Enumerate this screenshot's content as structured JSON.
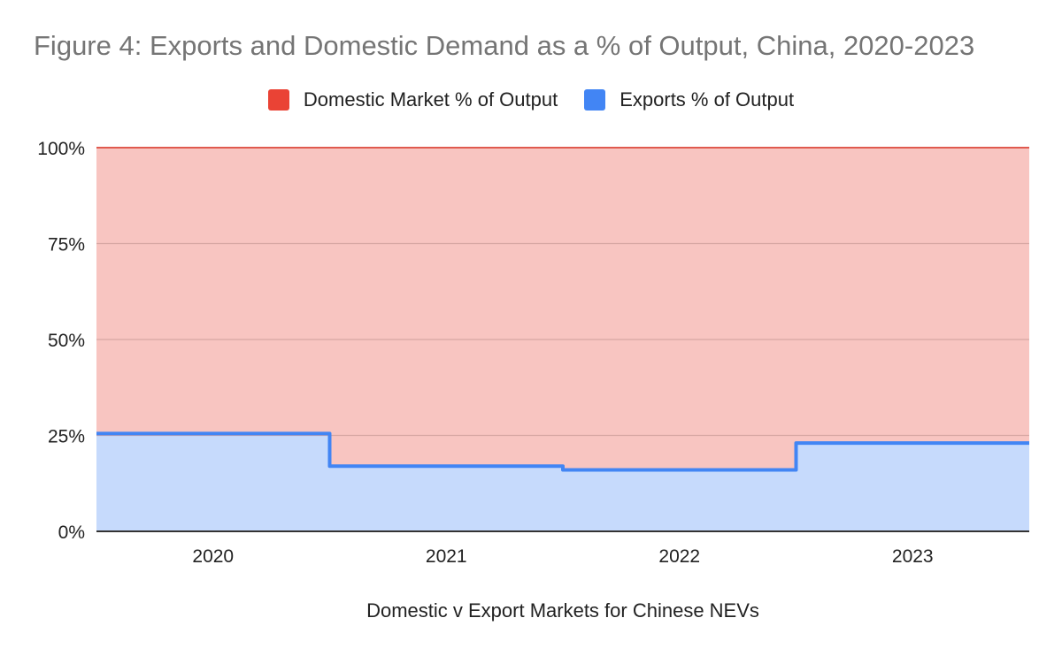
{
  "chart_data": {
    "type": "area",
    "title": "Figure 4: Exports and Domestic Demand as a % of Output, China, 2020-2023",
    "xlabel": "Domestic v Export Markets for Chinese NEVs",
    "ylabel": "",
    "categories": [
      "2020",
      "2021",
      "2022",
      "2023"
    ],
    "ylim": [
      0,
      100
    ],
    "yticks": [
      "0%",
      "25%",
      "50%",
      "75%",
      "100%"
    ],
    "stacked": true,
    "step": true,
    "grid": true,
    "legend_position": "top",
    "series": [
      {
        "name": "Domestic Market % of Output",
        "color": "#ea4335",
        "values": [
          74.5,
          83,
          84,
          77
        ]
      },
      {
        "name": "Exports % of Output",
        "color": "#4285f4",
        "values": [
          25.5,
          17,
          16,
          23
        ]
      }
    ]
  }
}
